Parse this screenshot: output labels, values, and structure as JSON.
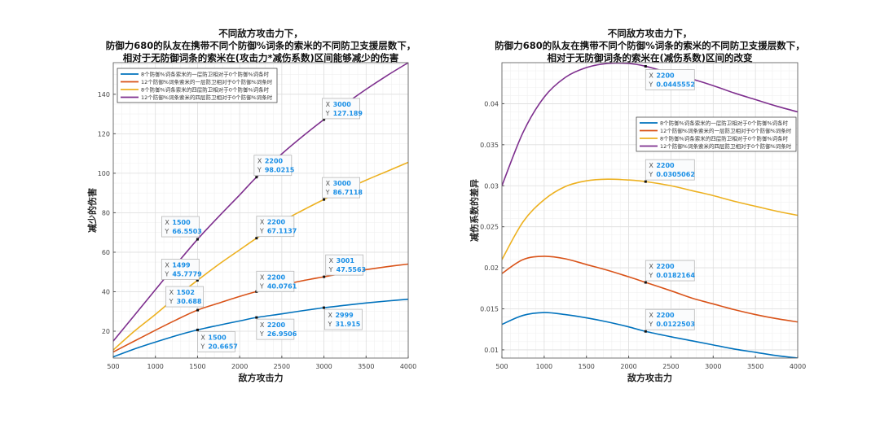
{
  "colors": {
    "series": [
      "#0072BD",
      "#D95319",
      "#EDB120",
      "#7E2F8E"
    ],
    "grid": "#dedede",
    "axis": "#555555",
    "tip_value": "#1a8fe6"
  },
  "chart_data": [
    {
      "type": "line",
      "title": [
        "不同敌方攻击力下，",
        "防御力680的队友在携带不同个防御%词条的索米的不同防卫支援层数下，",
        "相对于无防御词条的索米在(攻击力*减伤系数)区间能够减少的伤害"
      ],
      "xlabel": "敌方攻击力",
      "ylabel": "减少的伤害",
      "xlim": [
        500,
        4000
      ],
      "ylim": [
        6.4,
        156
      ],
      "xticks": [
        500,
        1000,
        1500,
        2000,
        2500,
        3000,
        3500,
        4000
      ],
      "yticks": [
        20,
        40,
        60,
        80,
        100,
        120,
        140
      ],
      "grid": true,
      "minor_grid": true,
      "legend_position": "top-left",
      "x": [
        500,
        750,
        1000,
        1250,
        1500,
        1750,
        2000,
        2200,
        2500,
        2750,
        3000,
        3250,
        3500,
        3750,
        4000
      ],
      "series": [
        {
          "name": "8个防御%词条索米的一层防卫相对于0个防御%词条时",
          "values": [
            7,
            11,
            14.5,
            17.8,
            20.67,
            23,
            25.2,
            26.95,
            28.8,
            30.4,
            31.9,
            33.1,
            34.3,
            35.3,
            36.2
          ]
        },
        {
          "name": "12个防御%词条索米的一层防卫相对于0个防御%词条时",
          "values": [
            9.5,
            15,
            20.5,
            25.8,
            30.69,
            34.2,
            37.6,
            40.08,
            43.3,
            45.6,
            47.56,
            49.5,
            51.2,
            52.7,
            54
          ]
        },
        {
          "name": "8个防御%词条索米的四层防卫相对于0个防御%词条时",
          "values": [
            10.5,
            20,
            28.5,
            37.5,
            45.78,
            53.8,
            61.2,
            67.11,
            75.5,
            81.3,
            86.71,
            91.7,
            96.5,
            101,
            105.5
          ]
        },
        {
          "name": "12个防御%词条索米的四层防卫相对于0个防御%词条时",
          "values": [
            15,
            28,
            41,
            54,
            66.55,
            78,
            89,
            98.02,
            109.8,
            118.8,
            127.19,
            135,
            142.5,
            149.5,
            156
          ]
        }
      ],
      "datatips": [
        {
          "series": 3,
          "x": "1500",
          "y": "66.5503"
        },
        {
          "series": 3,
          "x": "2200",
          "y": "98.0215"
        },
        {
          "series": 3,
          "x": "3000",
          "y": "127.189"
        },
        {
          "series": 2,
          "x": "1499",
          "y": "45.7779"
        },
        {
          "series": 2,
          "x": "2200",
          "y": "67.1137"
        },
        {
          "series": 2,
          "x": "3000",
          "y": "86.7118"
        },
        {
          "series": 1,
          "x": "1502",
          "y": "30.688"
        },
        {
          "series": 1,
          "x": "2200",
          "y": "40.0761"
        },
        {
          "series": 1,
          "x": "3001",
          "y": "47.5563"
        },
        {
          "series": 0,
          "x": "1500",
          "y": "20.6657"
        },
        {
          "series": 0,
          "x": "2200",
          "y": "26.9506"
        },
        {
          "series": 0,
          "x": "2999",
          "y": "31.915"
        }
      ]
    },
    {
      "type": "line",
      "title": [
        "不同敌方攻击力下，",
        "防御力680的队友在携带不同个防御%词条的索米的不同防卫支援层数下，",
        "相对于无防御词条的索米在(减伤系数)区间的改变"
      ],
      "xlabel": "敌方攻击力",
      "ylabel": "减伤系数的差异",
      "xlim": [
        500,
        4000
      ],
      "ylim": [
        0.009,
        0.045
      ],
      "xticks": [
        500,
        1000,
        1500,
        2000,
        2500,
        3000,
        3500,
        4000
      ],
      "yticks": [
        0.01,
        0.015,
        0.02,
        0.025,
        0.03,
        0.035,
        0.04
      ],
      "grid": true,
      "minor_grid": true,
      "legend_position": "right",
      "x": [
        500,
        750,
        1000,
        1250,
        1500,
        1750,
        2000,
        2200,
        2500,
        2750,
        3000,
        3250,
        3500,
        3750,
        4000
      ],
      "series": [
        {
          "name": "8个防御%词条索米的一层防卫相对于0个防御%词条时",
          "values": [
            0.0131,
            0.0142,
            0.01455,
            0.0143,
            0.0139,
            0.0134,
            0.0128,
            0.01225,
            0.0116,
            0.0111,
            0.0106,
            0.0101,
            0.0097,
            0.0093,
            0.009
          ]
        },
        {
          "name": "12个防御%词条索米的一层防卫相对于0个防御%词条时",
          "values": [
            0.0193,
            0.021,
            0.0214,
            0.0211,
            0.0204,
            0.0197,
            0.0189,
            0.01822,
            0.0172,
            0.0163,
            0.0156,
            0.0149,
            0.0143,
            0.0138,
            0.0134
          ]
        },
        {
          "name": "8个防御%词条索米的四层防卫相对于0个防御%词条时",
          "values": [
            0.021,
            0.0256,
            0.0283,
            0.0299,
            0.0306,
            0.0308,
            0.0307,
            0.03051,
            0.03,
            0.0294,
            0.0288,
            0.0281,
            0.0275,
            0.0269,
            0.0264
          ]
        },
        {
          "name": "12个防御%词条索米的四层防卫相对于0个防御%词条时",
          "values": [
            0.03,
            0.0365,
            0.0408,
            0.0432,
            0.0444,
            0.0449,
            0.0449,
            0.04456,
            0.0437,
            0.043,
            0.0422,
            0.0413,
            0.0405,
            0.0397,
            0.039
          ]
        }
      ],
      "datatips": [
        {
          "series": 3,
          "x": "2200",
          "y": "0.0445552"
        },
        {
          "series": 2,
          "x": "2200",
          "y": "0.0305062"
        },
        {
          "series": 1,
          "x": "2200",
          "y": "0.0182164"
        },
        {
          "series": 0,
          "x": "2200",
          "y": "0.0122503"
        }
      ]
    }
  ]
}
